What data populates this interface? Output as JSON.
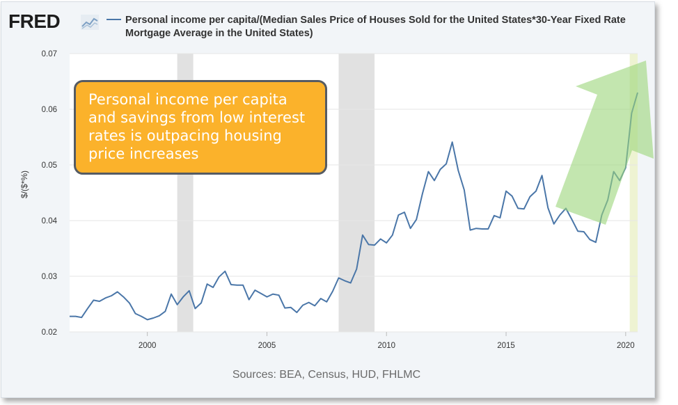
{
  "brand": {
    "logo_text": "FRED"
  },
  "legend": {
    "series_label": "Personal income per capita/(Median Sales Price of Houses Sold for the United States*30-Year Fixed Rate Mortgage Average in the United States)",
    "line_color": "#4a76a8"
  },
  "annotation": {
    "text": "Personal income per capita and savings from low interest rates is outpacing housing price increases",
    "fill_color": "#fbb22b",
    "arrow_color": "#9bd67a"
  },
  "footer": {
    "sources": "Sources: BEA, Census, HUD, FHLMC"
  },
  "chart_data": {
    "type": "line",
    "title": "",
    "xlabel": "",
    "ylabel": "$/($*%)",
    "ylim": [
      0.02,
      0.07
    ],
    "xlim": [
      1996.75,
      2020.5
    ],
    "yticks": [
      "0.02",
      "0.03",
      "0.04",
      "0.05",
      "0.06",
      "0.07"
    ],
    "xticks": [
      "2000",
      "2005",
      "2010",
      "2015",
      "2020"
    ],
    "grid": "horizontal",
    "recessions": [
      [
        2001.25,
        2001.92
      ],
      [
        2008.0,
        2009.5
      ],
      [
        2020.17,
        2020.5
      ]
    ],
    "series": [
      {
        "name": "Personal income per capita/(Median Sales Price of Houses Sold for the United States*30-Year Fixed Rate Mortgage Average in the United States)",
        "x": [
          1996.75,
          1997.0,
          1997.25,
          1997.5,
          1997.75,
          1998.0,
          1998.25,
          1998.5,
          1998.75,
          1999.0,
          1999.25,
          1999.5,
          1999.75,
          2000.0,
          2000.25,
          2000.5,
          2000.75,
          2001.0,
          2001.25,
          2001.5,
          2001.75,
          2002.0,
          2002.25,
          2002.5,
          2002.75,
          2003.0,
          2003.25,
          2003.5,
          2003.75,
          2004.0,
          2004.25,
          2004.5,
          2004.75,
          2005.0,
          2005.25,
          2005.5,
          2005.75,
          2006.0,
          2006.25,
          2006.5,
          2006.75,
          2007.0,
          2007.25,
          2007.5,
          2007.75,
          2008.0,
          2008.25,
          2008.5,
          2008.75,
          2009.0,
          2009.25,
          2009.5,
          2009.75,
          2010.0,
          2010.25,
          2010.5,
          2010.75,
          2011.0,
          2011.25,
          2011.5,
          2011.75,
          2012.0,
          2012.25,
          2012.5,
          2012.75,
          2013.0,
          2013.25,
          2013.5,
          2013.75,
          2014.0,
          2014.25,
          2014.5,
          2014.75,
          2015.0,
          2015.25,
          2015.5,
          2015.75,
          2016.0,
          2016.25,
          2016.5,
          2016.75,
          2017.0,
          2017.25,
          2017.5,
          2017.75,
          2018.0,
          2018.25,
          2018.5,
          2018.75,
          2019.0,
          2019.25,
          2019.5,
          2019.75,
          2020.0,
          2020.25,
          2020.5
        ],
        "values": [
          0.0228,
          0.0228,
          0.0226,
          0.0242,
          0.0257,
          0.0255,
          0.0261,
          0.0265,
          0.0272,
          0.0263,
          0.0252,
          0.0233,
          0.0228,
          0.0222,
          0.0225,
          0.0229,
          0.0237,
          0.0268,
          0.0249,
          0.0263,
          0.0274,
          0.0242,
          0.0252,
          0.0286,
          0.028,
          0.0299,
          0.0309,
          0.0285,
          0.0284,
          0.0284,
          0.0258,
          0.0275,
          0.0269,
          0.0263,
          0.0268,
          0.0266,
          0.0243,
          0.0244,
          0.0235,
          0.0248,
          0.0253,
          0.0247,
          0.026,
          0.0254,
          0.0273,
          0.0297,
          0.0292,
          0.0288,
          0.0313,
          0.0374,
          0.0357,
          0.0356,
          0.0367,
          0.036,
          0.0374,
          0.041,
          0.0415,
          0.0386,
          0.0402,
          0.0448,
          0.0488,
          0.0472,
          0.0492,
          0.0502,
          0.0541,
          0.049,
          0.0455,
          0.0383,
          0.0386,
          0.0385,
          0.0385,
          0.0409,
          0.0405,
          0.0453,
          0.0444,
          0.0422,
          0.0421,
          0.0443,
          0.0453,
          0.0481,
          0.0423,
          0.0394,
          0.041,
          0.0422,
          0.0402,
          0.0381,
          0.038,
          0.0366,
          0.0361,
          0.041,
          0.0437,
          0.0488,
          0.0472,
          0.0495,
          0.0593,
          0.063
        ]
      }
    ]
  }
}
